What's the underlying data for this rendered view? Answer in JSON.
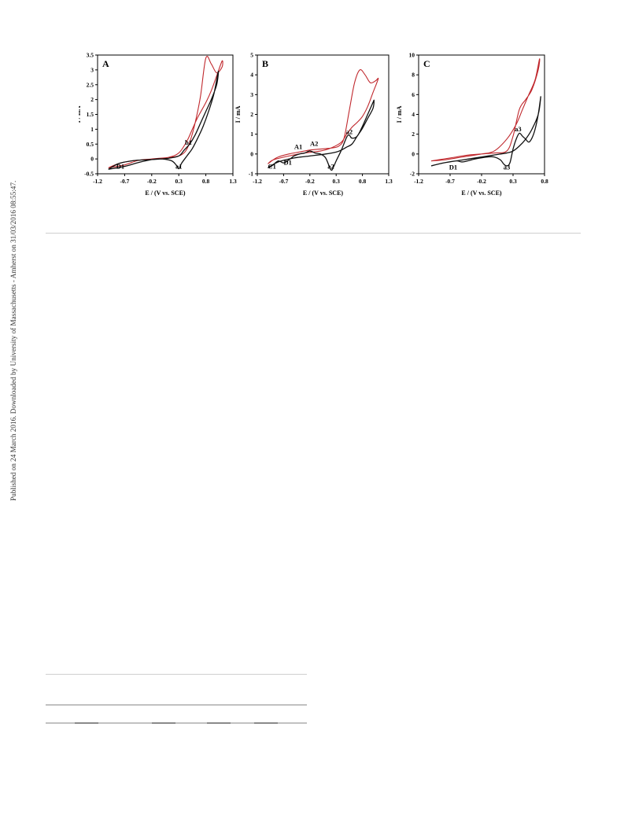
{
  "side_note": "Published on 24 March 2016. Downloaded by University of Massachusetts - Amherst on 31/03/2016 08:55:47.",
  "colors": {
    "scan_1": "#c0282d",
    "scan_2": "#111111"
  },
  "chart_data": [
    {
      "type": "line",
      "panel_label": "A",
      "xlabel": "E / (V vs. SCE)",
      "ylabel": "I / mA",
      "xlim": [
        -1.2,
        1.3
      ],
      "ylim": [
        -0.5,
        3.5
      ],
      "xticks": [
        "-1.2",
        "-0.7",
        "-0.2",
        "0.3",
        "0.8",
        "1.3"
      ],
      "yticks": [
        "-0.5",
        "0",
        "0.5",
        "1",
        "1.5",
        "2",
        "2.5",
        "3",
        "3.5"
      ],
      "grid": false,
      "annotations": [
        {
          "text": "D1",
          "x": -0.78,
          "y": -0.33
        },
        {
          "text": "a1",
          "x": 0.3,
          "y": -0.33
        },
        {
          "text": "b1",
          "x": 0.48,
          "y": 0.48
        }
      ],
      "series": [
        {
          "x": [
            -1.0,
            -0.7,
            -0.45,
            -0.2,
            0.1,
            0.3,
            0.42,
            0.5,
            0.6,
            0.7,
            0.8,
            0.9,
            1.0,
            1.1,
            1.1,
            1.0,
            0.9,
            0.8,
            0.65,
            0.55,
            0.45,
            0.3,
            0.1,
            -0.2,
            -0.5,
            -0.8,
            -1.0
          ],
          "y": [
            -0.3,
            -0.2,
            -0.05,
            0.0,
            0.05,
            0.1,
            0.25,
            0.55,
            1.2,
            2.1,
            3.4,
            3.2,
            2.9,
            3.1,
            3.3,
            2.8,
            2.3,
            1.9,
            1.4,
            1.0,
            0.6,
            0.2,
            0.05,
            -0.02,
            -0.05,
            -0.15,
            -0.3
          ]
        },
        {
          "x": [
            -1.0,
            -0.7,
            -0.4,
            -0.1,
            0.15,
            0.25,
            0.3,
            0.35,
            0.45,
            0.55,
            0.65,
            0.75,
            0.85,
            0.95,
            1.03,
            1.0,
            0.9,
            0.8,
            0.7,
            0.6,
            0.5,
            0.4,
            0.3,
            0.1,
            -0.2,
            -0.5,
            -0.8,
            -1.0
          ],
          "y": [
            -0.35,
            -0.25,
            -0.1,
            0.0,
            -0.05,
            -0.2,
            -0.33,
            -0.15,
            0.1,
            0.35,
            0.7,
            1.1,
            1.6,
            2.2,
            2.95,
            2.5,
            2.0,
            1.6,
            1.2,
            0.8,
            0.5,
            0.3,
            0.1,
            0.02,
            -0.02,
            -0.05,
            -0.15,
            -0.35
          ]
        }
      ]
    },
    {
      "type": "line",
      "panel_label": "B",
      "xlabel": "E / (V vs. SCE)",
      "ylabel": "I / mA",
      "xlim": [
        -1.2,
        1.3
      ],
      "ylim": [
        -1,
        5
      ],
      "xticks": [
        "-1.2",
        "-0.7",
        "-0.2",
        "0.3",
        "0.8",
        "1.3"
      ],
      "yticks": [
        "-1",
        "0",
        "1",
        "2",
        "3",
        "4",
        "5"
      ],
      "grid": false,
      "annotations": [
        {
          "text": "C1",
          "x": -0.92,
          "y": -0.75
        },
        {
          "text": "D1",
          "x": -0.62,
          "y": -0.55
        },
        {
          "text": "A1",
          "x": -0.42,
          "y": 0.25
        },
        {
          "text": "A2",
          "x": -0.12,
          "y": 0.42
        },
        {
          "text": "a2",
          "x": 0.2,
          "y": -0.75
        },
        {
          "text": "a2",
          "x": 0.55,
          "y": 1.0
        }
      ],
      "series": [
        {
          "x": [
            -1.0,
            -0.9,
            -0.8,
            -0.6,
            -0.4,
            -0.2,
            0.0,
            0.2,
            0.35,
            0.45,
            0.55,
            0.65,
            0.75,
            0.85,
            0.95,
            1.05,
            1.1,
            1.0,
            0.9,
            0.8,
            0.7,
            0.6,
            0.5,
            0.4,
            0.2,
            0.0,
            -0.3,
            -0.6,
            -0.9,
            -1.0
          ],
          "y": [
            -0.5,
            -0.3,
            -0.15,
            0.0,
            0.1,
            0.2,
            0.25,
            0.3,
            0.4,
            0.8,
            2.2,
            3.6,
            4.25,
            4.0,
            3.6,
            3.7,
            3.8,
            3.1,
            2.4,
            1.9,
            1.6,
            1.35,
            1.0,
            0.6,
            0.3,
            0.15,
            0.05,
            -0.1,
            -0.3,
            -0.5
          ]
        },
        {
          "x": [
            -1.0,
            -0.95,
            -0.9,
            -0.8,
            -0.7,
            -0.6,
            -0.5,
            -0.4,
            -0.3,
            -0.2,
            -0.1,
            0.0,
            0.1,
            0.2,
            0.25,
            0.3,
            0.4,
            0.5,
            0.55,
            0.6,
            0.7,
            0.8,
            0.9,
            1.0,
            1.02,
            1.0,
            0.9,
            0.8,
            0.7,
            0.6,
            0.5,
            0.4,
            0.3,
            0.1,
            -0.2,
            -0.5,
            -0.8,
            -1.0
          ],
          "y": [
            -0.7,
            -0.65,
            -0.55,
            -0.35,
            -0.45,
            -0.3,
            -0.1,
            0.0,
            0.05,
            0.15,
            0.05,
            0.0,
            -0.2,
            -0.8,
            -0.65,
            -0.35,
            0.2,
            0.85,
            0.95,
            0.8,
            0.9,
            1.4,
            2.0,
            2.6,
            2.7,
            2.3,
            1.8,
            1.3,
            0.9,
            0.5,
            0.35,
            0.2,
            0.1,
            0.0,
            -0.1,
            -0.2,
            -0.4,
            -0.7
          ]
        }
      ]
    },
    {
      "type": "line",
      "panel_label": "C",
      "xlabel": "E / (V vs. SCE)",
      "ylabel": "I / mA",
      "xlim": [
        -1.2,
        0.8
      ],
      "ylim": [
        -2,
        10
      ],
      "xticks": [
        "-1.2",
        "-0.7",
        "-0.2",
        "0.3",
        "0.8"
      ],
      "yticks": [
        "-2",
        "0",
        "2",
        "4",
        "6",
        "8",
        "10"
      ],
      "grid": false,
      "annotations": [
        {
          "text": "D1",
          "x": -0.65,
          "y": -1.55
        },
        {
          "text": "a3",
          "x": 0.2,
          "y": -1.55
        },
        {
          "text": "a3",
          "x": 0.38,
          "y": 2.3
        }
      ],
      "series": [
        {
          "x": [
            -1.0,
            -0.8,
            -0.6,
            -0.4,
            -0.2,
            0.0,
            0.2,
            0.3,
            0.4,
            0.5,
            0.6,
            0.7,
            0.72,
            0.65,
            0.55,
            0.45,
            0.35,
            0.2,
            0.0,
            -0.2,
            -0.5,
            -0.8,
            -1.0
          ],
          "y": [
            -0.7,
            -0.5,
            -0.3,
            -0.1,
            0.0,
            0.1,
            0.3,
            1.8,
            4.5,
            5.5,
            6.5,
            8.5,
            9.6,
            7.5,
            6.0,
            4.5,
            3.0,
            1.5,
            0.3,
            0.0,
            -0.3,
            -0.6,
            -0.7
          ]
        },
        {
          "x": [
            -1.0,
            -0.8,
            -0.6,
            -0.5,
            -0.3,
            -0.1,
            0.0,
            0.1,
            0.15,
            0.2,
            0.25,
            0.3,
            0.35,
            0.4,
            0.45,
            0.5,
            0.55,
            0.6,
            0.65,
            0.7,
            0.74,
            0.7,
            0.6,
            0.5,
            0.4,
            0.3,
            0.2,
            0.0,
            -0.2,
            -0.5,
            -0.8,
            -1.0
          ],
          "y": [
            -1.2,
            -0.9,
            -0.7,
            -0.8,
            -0.5,
            -0.3,
            -0.3,
            -0.6,
            -1.0,
            -1.2,
            -0.9,
            0.5,
            1.5,
            2.1,
            1.8,
            1.5,
            1.2,
            1.6,
            2.5,
            4.0,
            5.8,
            4.0,
            2.5,
            1.5,
            0.8,
            0.3,
            0.1,
            -0.1,
            -0.3,
            -0.6,
            -0.9,
            -1.2
          ]
        }
      ]
    }
  ]
}
